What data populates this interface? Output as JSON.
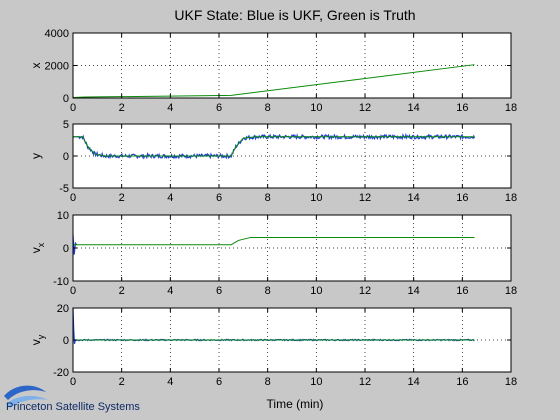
{
  "chart_data": {
    "type": "line",
    "title": "UKF State: Blue is UKF, Green is Truth",
    "xlabel": "Time (min)",
    "xlim": [
      0,
      18
    ],
    "xticks": [
      0,
      2,
      4,
      6,
      8,
      10,
      12,
      14,
      16,
      18
    ],
    "grid": true,
    "colors": {
      "ukf": "#1f3fd6",
      "truth": "#0a8a0a"
    },
    "panels": [
      {
        "ylabel": "x",
        "ylabel_sub": "",
        "ylim": [
          0,
          4000
        ],
        "yticks": [
          0,
          2000,
          4000
        ],
        "series": [
          {
            "name": "Truth",
            "x": [
              0,
              0.5,
              6.5,
              16.5
            ],
            "y": [
              30,
              60,
              160,
              2050
            ]
          }
        ]
      },
      {
        "ylabel": "y",
        "ylabel_sub": "",
        "ylim": [
          -5,
          5
        ],
        "yticks": [
          -5,
          0,
          5
        ],
        "series": [
          {
            "name": "UKF",
            "x": [
              0,
              0.4,
              0.6,
              0.9,
              1.3,
              6.5,
              6.7,
              7.0,
              7.5,
              16.5
            ],
            "y": [
              3,
              3,
              1.5,
              0.3,
              0,
              0,
              1.5,
              2.8,
              3,
              3
            ],
            "noise": 0.3
          },
          {
            "name": "Truth",
            "x": [
              0,
              0.4,
              0.6,
              0.9,
              1.3,
              6.5,
              6.7,
              7.0,
              7.5,
              16.5
            ],
            "y": [
              3,
              3,
              1.5,
              0.3,
              0,
              0,
              1.5,
              2.8,
              3,
              3
            ]
          }
        ]
      },
      {
        "ylabel": "v",
        "ylabel_sub": "x",
        "ylim": [
          -10,
          10
        ],
        "yticks": [
          -10,
          0,
          10
        ],
        "series": [
          {
            "name": "UKF",
            "x": [
              0,
              0.05,
              0.1,
              0.15
            ],
            "y": [
              4,
              -2,
              1.5,
              1
            ]
          },
          {
            "name": "Truth",
            "x": [
              0,
              6.5,
              6.8,
              7.3,
              16.5
            ],
            "y": [
              1,
              1,
              2.3,
              3.2,
              3.2
            ]
          }
        ]
      },
      {
        "ylabel": "v",
        "ylabel_sub": "y",
        "ylim": [
          -20,
          20
        ],
        "yticks": [
          -20,
          0,
          20
        ],
        "series": [
          {
            "name": "UKF",
            "x": [
              0,
              0.05,
              0.1,
              16.5
            ],
            "y": [
              20,
              -3,
              0,
              0
            ],
            "noise": 0.4
          },
          {
            "name": "Truth",
            "x": [
              0,
              16.5
            ],
            "y": [
              0,
              0
            ]
          }
        ]
      }
    ]
  },
  "logo": {
    "text": "Princeton Satellite Systems"
  }
}
